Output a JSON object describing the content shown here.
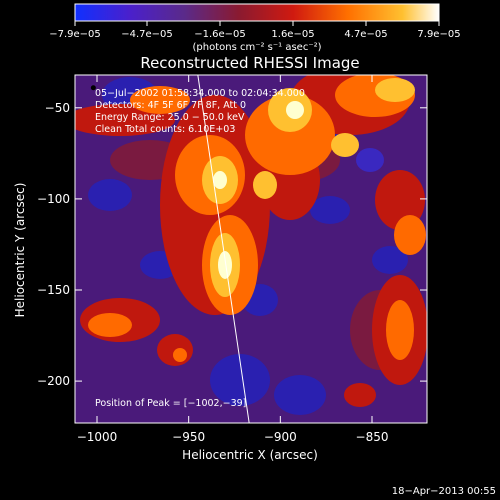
{
  "chart_data": {
    "type": "heatmap",
    "title": "Reconstructed RHESSI Image",
    "xlabel": "Heliocentric X (arcsec)",
    "ylabel": "Heliocentric Y (arcsec)",
    "xlim": [
      -1012,
      -820
    ],
    "ylim": [
      -223,
      -32
    ],
    "x_ticks": [
      -1000,
      -950,
      -900,
      -850
    ],
    "x_tick_labels": [
      "−1000",
      "−950",
      "−900",
      "−850"
    ],
    "y_ticks": [
      -50,
      -100,
      -150,
      -200
    ],
    "y_tick_labels": [
      "−50",
      "−100",
      "−150",
      "−200"
    ],
    "colorbar": {
      "min": -7.9e-05,
      "max": 7.9e-05,
      "tick_labels": [
        "−7.9e−05",
        "−4.7e−05",
        "−1.6e−05",
        "1.6e−05",
        "4.7e−05",
        "7.9e−05"
      ],
      "unit_label": "(photons cm⁻² s⁻¹ asec⁻²)",
      "colors": [
        "#1030ff",
        "#4a20cc",
        "#5a2a8a",
        "#8a1a30",
        "#d01a10",
        "#ff7000",
        "#ffc030",
        "#ffffff"
      ]
    },
    "annotations": {
      "time_range": "05−Jul−2002 01:58:34.000 to 02:04:34.000",
      "detectors": "Detectors: 4F 5F 6F 7F 8F, Att 0",
      "energy": "Energy Range: 25.0 − 50.0 keV",
      "clean": "Clean    Total counts: 6.10E+03",
      "peak": "Position of Peak = [−1002,−39]"
    },
    "limb_line": {
      "x": [
        -945,
        -917
      ],
      "y": [
        -32,
        -223
      ]
    },
    "peak_position": {
      "x": -1002,
      "y": -39
    }
  },
  "footer": {
    "timestamp": "18−Apr−2013 00:55"
  }
}
